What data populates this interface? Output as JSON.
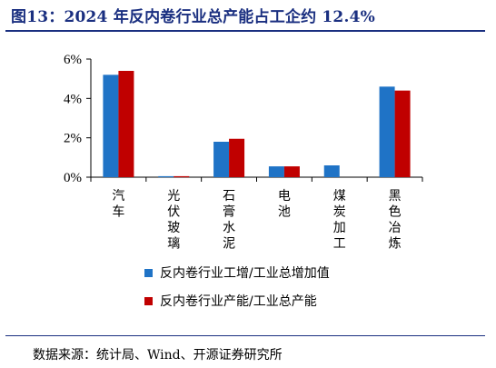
{
  "title": "图13：2024 年反内卷行业总产能占工企约 12.4%",
  "source": "数据来源：统计局、Wind、开源证券研究所",
  "chart_data": {
    "type": "bar",
    "categories": [
      "汽车",
      "光伏玻璃",
      "石膏水泥",
      "电池",
      "煤炭加工",
      "黑色冶炼"
    ],
    "series": [
      {
        "name": "反内卷行业工增/工业总增加值",
        "color": "#1f73c6",
        "values": [
          5.2,
          0.05,
          1.8,
          0.55,
          0.6,
          4.6
        ]
      },
      {
        "name": "反内卷行业产能/工业总产能",
        "color": "#c00000",
        "values": [
          5.4,
          0.05,
          1.95,
          0.55,
          null,
          4.4
        ]
      }
    ],
    "yticks": [
      "0%",
      "2%",
      "4%",
      "6%"
    ],
    "ylim": [
      0,
      6
    ],
    "grid": false,
    "legend": "bottom"
  }
}
